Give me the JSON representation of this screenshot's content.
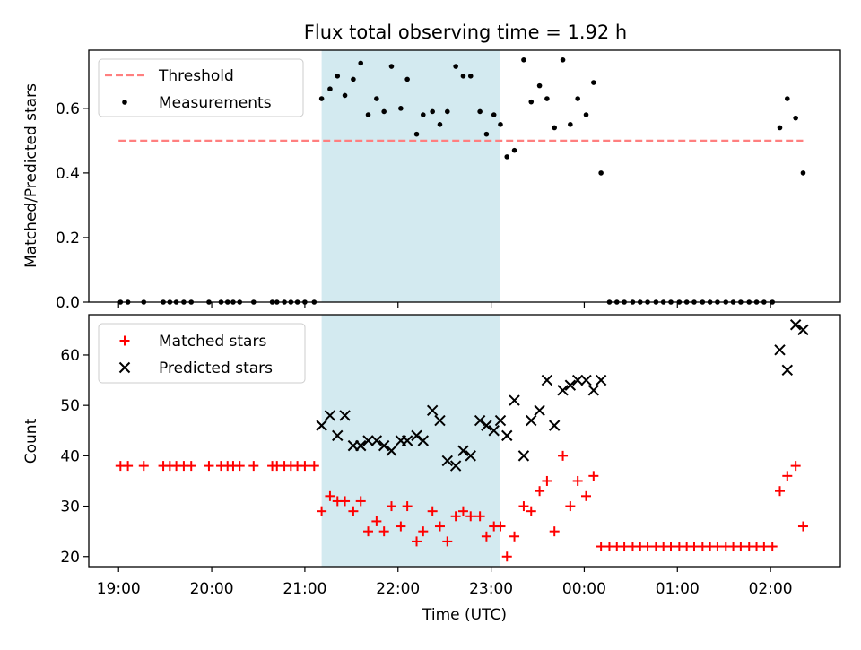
{
  "title": "Flux total observing time = 1.92 h",
  "colors": {
    "band": "#d3eaf0",
    "threshold": "#ff7f7f",
    "measurement": "#000000",
    "matched": "#ff0000",
    "predicted": "#000000"
  },
  "chart_data": [
    {
      "type": "scatter",
      "ylabel": "Matched/Predicted stars",
      "xlabel": "",
      "xlim": [
        18.68,
        2.75
      ],
      "ylim": [
        0.0,
        0.78
      ],
      "yticks": [
        "0.0",
        "0.2",
        "0.4",
        "0.6"
      ],
      "ytick_values": [
        0.0,
        0.2,
        0.4,
        0.6
      ],
      "grid": false,
      "legend_position": "top-left",
      "shaded_span": [
        21.18,
        23.1
      ],
      "threshold": {
        "name": "Threshold",
        "value": 0.5,
        "x_range": [
          19.0,
          2.35
        ]
      },
      "series": [
        {
          "name": "Measurements",
          "points": [
            [
              19.02,
              0.0
            ],
            [
              19.1,
              0.0
            ],
            [
              19.27,
              0.0
            ],
            [
              19.48,
              0.0
            ],
            [
              19.55,
              0.0
            ],
            [
              19.62,
              0.0
            ],
            [
              19.7,
              0.0
            ],
            [
              19.78,
              0.0
            ],
            [
              19.97,
              0.0
            ],
            [
              20.1,
              0.0
            ],
            [
              20.17,
              0.0
            ],
            [
              20.23,
              0.0
            ],
            [
              20.3,
              0.0
            ],
            [
              20.45,
              0.0
            ],
            [
              20.65,
              0.0
            ],
            [
              20.7,
              0.0
            ],
            [
              20.78,
              0.0
            ],
            [
              20.85,
              0.0
            ],
            [
              20.92,
              0.0
            ],
            [
              21.0,
              0.0
            ],
            [
              21.1,
              0.0
            ],
            [
              21.18,
              0.63
            ],
            [
              21.27,
              0.66
            ],
            [
              21.35,
              0.7
            ],
            [
              21.43,
              0.64
            ],
            [
              21.52,
              0.69
            ],
            [
              21.6,
              0.74
            ],
            [
              21.68,
              0.58
            ],
            [
              21.77,
              0.63
            ],
            [
              21.85,
              0.59
            ],
            [
              21.93,
              0.73
            ],
            [
              22.03,
              0.6
            ],
            [
              22.1,
              0.69
            ],
            [
              22.2,
              0.52
            ],
            [
              22.27,
              0.58
            ],
            [
              22.37,
              0.59
            ],
            [
              22.45,
              0.55
            ],
            [
              22.53,
              0.59
            ],
            [
              22.62,
              0.73
            ],
            [
              22.7,
              0.7
            ],
            [
              22.78,
              0.7
            ],
            [
              22.88,
              0.59
            ],
            [
              22.95,
              0.52
            ],
            [
              23.03,
              0.58
            ],
            [
              23.1,
              0.55
            ],
            [
              23.17,
              0.45
            ],
            [
              23.25,
              0.47
            ],
            [
              23.35,
              0.75
            ],
            [
              23.43,
              0.62
            ],
            [
              23.52,
              0.67
            ],
            [
              23.6,
              0.63
            ],
            [
              23.68,
              0.54
            ],
            [
              23.77,
              0.75
            ],
            [
              23.85,
              0.55
            ],
            [
              23.93,
              0.63
            ],
            [
              24.02,
              0.58
            ],
            [
              24.1,
              0.68
            ],
            [
              24.18,
              0.4
            ],
            [
              24.27,
              0.0
            ],
            [
              24.35,
              0.0
            ],
            [
              24.43,
              0.0
            ],
            [
              24.52,
              0.0
            ],
            [
              24.6,
              0.0
            ],
            [
              24.68,
              0.0
            ],
            [
              24.77,
              0.0
            ],
            [
              24.85,
              0.0
            ],
            [
              24.93,
              0.0
            ],
            [
              25.02,
              0.0
            ],
            [
              25.1,
              0.0
            ],
            [
              25.18,
              0.0
            ],
            [
              25.27,
              0.0
            ],
            [
              25.35,
              0.0
            ],
            [
              25.43,
              0.0
            ],
            [
              25.52,
              0.0
            ],
            [
              25.6,
              0.0
            ],
            [
              25.68,
              0.0
            ],
            [
              25.77,
              0.0
            ],
            [
              25.85,
              0.0
            ],
            [
              25.93,
              0.0
            ],
            [
              26.02,
              0.0
            ],
            [
              26.1,
              0.54
            ],
            [
              26.18,
              0.63
            ],
            [
              26.27,
              0.57
            ],
            [
              26.35,
              0.4
            ]
          ]
        }
      ]
    },
    {
      "type": "scatter",
      "ylabel": "Count",
      "xlabel": "Time (UTC)",
      "xlim": [
        18.68,
        2.75
      ],
      "ylim": [
        18,
        68
      ],
      "yticks": [
        "20",
        "30",
        "40",
        "50",
        "60"
      ],
      "ytick_values": [
        20,
        30,
        40,
        50,
        60
      ],
      "xticks": [
        "19:00",
        "20:00",
        "21:00",
        "22:00",
        "23:00",
        "00:00",
        "01:00",
        "02:00"
      ],
      "xtick_values": [
        19,
        20,
        21,
        22,
        23,
        24,
        25,
        26
      ],
      "grid": false,
      "legend_position": "top-left",
      "shaded_span": [
        21.18,
        23.1
      ],
      "series": [
        {
          "name": "Matched stars",
          "marker": "plus",
          "points": [
            [
              19.02,
              38
            ],
            [
              19.1,
              38
            ],
            [
              19.27,
              38
            ],
            [
              19.48,
              38
            ],
            [
              19.55,
              38
            ],
            [
              19.62,
              38
            ],
            [
              19.7,
              38
            ],
            [
              19.78,
              38
            ],
            [
              19.97,
              38
            ],
            [
              20.1,
              38
            ],
            [
              20.17,
              38
            ],
            [
              20.23,
              38
            ],
            [
              20.3,
              38
            ],
            [
              20.45,
              38
            ],
            [
              20.65,
              38
            ],
            [
              20.7,
              38
            ],
            [
              20.78,
              38
            ],
            [
              20.85,
              38
            ],
            [
              20.92,
              38
            ],
            [
              21.0,
              38
            ],
            [
              21.1,
              38
            ],
            [
              21.18,
              29
            ],
            [
              21.27,
              32
            ],
            [
              21.35,
              31
            ],
            [
              21.43,
              31
            ],
            [
              21.52,
              29
            ],
            [
              21.6,
              31
            ],
            [
              21.68,
              25
            ],
            [
              21.77,
              27
            ],
            [
              21.85,
              25
            ],
            [
              21.93,
              30
            ],
            [
              22.03,
              26
            ],
            [
              22.1,
              30
            ],
            [
              22.2,
              23
            ],
            [
              22.27,
              25
            ],
            [
              22.37,
              29
            ],
            [
              22.45,
              26
            ],
            [
              22.53,
              23
            ],
            [
              22.62,
              28
            ],
            [
              22.7,
              29
            ],
            [
              22.78,
              28
            ],
            [
              22.88,
              28
            ],
            [
              22.95,
              24
            ],
            [
              23.03,
              26
            ],
            [
              23.1,
              26
            ],
            [
              23.17,
              20
            ],
            [
              23.25,
              24
            ],
            [
              23.35,
              30
            ],
            [
              23.43,
              29
            ],
            [
              23.52,
              33
            ],
            [
              23.6,
              35
            ],
            [
              23.68,
              25
            ],
            [
              23.77,
              40
            ],
            [
              23.85,
              30
            ],
            [
              23.93,
              35
            ],
            [
              24.02,
              32
            ],
            [
              24.1,
              36
            ],
            [
              24.18,
              22
            ],
            [
              24.27,
              22
            ],
            [
              24.35,
              22
            ],
            [
              24.43,
              22
            ],
            [
              24.52,
              22
            ],
            [
              24.6,
              22
            ],
            [
              24.68,
              22
            ],
            [
              24.77,
              22
            ],
            [
              24.85,
              22
            ],
            [
              24.93,
              22
            ],
            [
              25.02,
              22
            ],
            [
              25.1,
              22
            ],
            [
              25.18,
              22
            ],
            [
              25.27,
              22
            ],
            [
              25.35,
              22
            ],
            [
              25.43,
              22
            ],
            [
              25.52,
              22
            ],
            [
              25.6,
              22
            ],
            [
              25.68,
              22
            ],
            [
              25.77,
              22
            ],
            [
              25.85,
              22
            ],
            [
              25.93,
              22
            ],
            [
              26.02,
              22
            ],
            [
              26.1,
              33
            ],
            [
              26.18,
              36
            ],
            [
              26.27,
              38
            ],
            [
              26.35,
              26
            ]
          ]
        },
        {
          "name": "Predicted stars",
          "marker": "x",
          "points": [
            [
              21.18,
              46
            ],
            [
              21.27,
              48
            ],
            [
              21.35,
              44
            ],
            [
              21.43,
              48
            ],
            [
              21.52,
              42
            ],
            [
              21.6,
              42
            ],
            [
              21.68,
              43
            ],
            [
              21.77,
              43
            ],
            [
              21.85,
              42
            ],
            [
              21.93,
              41
            ],
            [
              22.03,
              43
            ],
            [
              22.1,
              43
            ],
            [
              22.2,
              44
            ],
            [
              22.27,
              43
            ],
            [
              22.37,
              49
            ],
            [
              22.45,
              47
            ],
            [
              22.53,
              39
            ],
            [
              22.62,
              38
            ],
            [
              22.7,
              41
            ],
            [
              22.78,
              40
            ],
            [
              22.88,
              47
            ],
            [
              22.95,
              46
            ],
            [
              23.03,
              45
            ],
            [
              23.1,
              47
            ],
            [
              23.17,
              44
            ],
            [
              23.25,
              51
            ],
            [
              23.35,
              40
            ],
            [
              23.43,
              47
            ],
            [
              23.52,
              49
            ],
            [
              23.6,
              55
            ],
            [
              23.68,
              46
            ],
            [
              23.77,
              53
            ],
            [
              23.85,
              54
            ],
            [
              23.93,
              55
            ],
            [
              24.02,
              55
            ],
            [
              24.1,
              53
            ],
            [
              24.18,
              55
            ],
            [
              26.1,
              61
            ],
            [
              26.18,
              57
            ],
            [
              26.27,
              66
            ],
            [
              26.35,
              65
            ]
          ]
        }
      ]
    }
  ]
}
